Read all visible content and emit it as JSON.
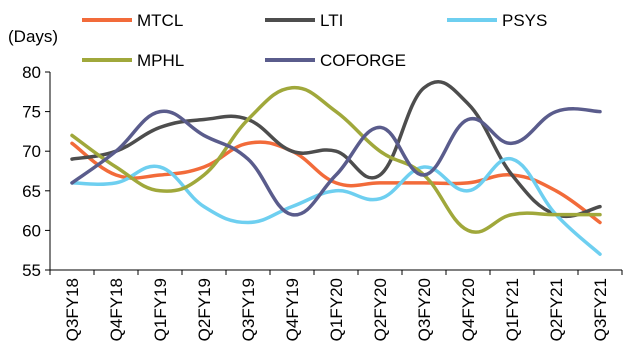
{
  "chart_data": {
    "type": "line",
    "ylabel": "(Days)",
    "ylim": [
      55,
      80
    ],
    "yticks": [
      55,
      60,
      65,
      70,
      75,
      80
    ],
    "categories": [
      "Q3FY18",
      "Q4FY18",
      "Q1FY19",
      "Q2FY19",
      "Q3FY19",
      "Q4FY19",
      "Q1FY20",
      "Q2FY20",
      "Q3FY20",
      "Q4FY20",
      "Q1FY21",
      "Q2FY21",
      "Q3FY21"
    ],
    "legend_position": "top",
    "grid": false,
    "smooth": true,
    "series": [
      {
        "name": "MTCL",
        "color": "#f26b3a",
        "values": [
          71,
          67,
          67,
          68,
          71,
          70,
          66,
          66,
          66,
          66,
          67,
          65,
          61
        ]
      },
      {
        "name": "LTI",
        "color": "#4d4d4d",
        "values": [
          69,
          70,
          73,
          74,
          74,
          70,
          70,
          67,
          78,
          76,
          67,
          62,
          63
        ]
      },
      {
        "name": "PSYS",
        "color": "#6ecff0",
        "values": [
          66,
          66,
          68,
          63,
          61,
          63,
          65,
          64,
          68,
          65,
          69,
          62,
          57
        ]
      },
      {
        "name": "MPHL",
        "color": "#a0a83b",
        "values": [
          72,
          68,
          65,
          67,
          74,
          78,
          75,
          70,
          67,
          60,
          62,
          62,
          62
        ]
      },
      {
        "name": "COFORGE",
        "color": "#5a5c8c",
        "values": [
          66,
          70,
          75,
          72,
          69,
          62,
          67,
          73,
          67,
          74,
          71,
          75,
          75
        ]
      }
    ]
  }
}
